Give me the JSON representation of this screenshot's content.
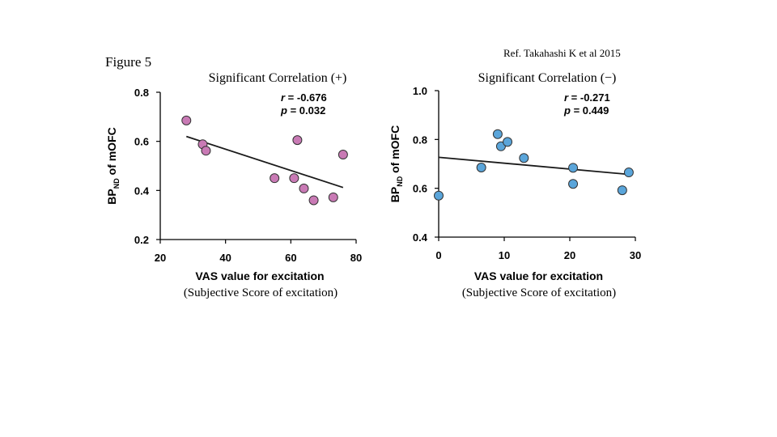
{
  "figure_label": "Figure 5",
  "reference": "Ref. Takahashi K et al 2015",
  "chart_data": [
    {
      "type": "scatter",
      "title": "Significant Correlation (+)",
      "subtitle": "(Subjective Score of excitation)",
      "xlabel": "VAS value for excitation",
      "ylabel_main": "BP",
      "ylabel_sub": "ND",
      "ylabel_rest": " of mOFC",
      "stat_r_label": "r",
      "stat_r_value": " = -0.676",
      "stat_p_label": "p",
      "stat_p_value": " = 0.032",
      "xlim": [
        20,
        80
      ],
      "ylim": [
        0.2,
        0.8
      ],
      "xticks": [
        20,
        40,
        60,
        80
      ],
      "xtick_labels": [
        "20",
        "40",
        "60",
        "80"
      ],
      "yticks": [
        0.2,
        0.4,
        0.6,
        0.8
      ],
      "ytick_labels": [
        "0.2",
        "0.4",
        "0.6",
        "0.8"
      ],
      "point_color": "#c97ab5",
      "points": [
        {
          "x": 28,
          "y": 0.685
        },
        {
          "x": 33,
          "y": 0.588
        },
        {
          "x": 34,
          "y": 0.562
        },
        {
          "x": 55,
          "y": 0.45
        },
        {
          "x": 61,
          "y": 0.45
        },
        {
          "x": 62,
          "y": 0.605
        },
        {
          "x": 64,
          "y": 0.408
        },
        {
          "x": 67,
          "y": 0.36
        },
        {
          "x": 73,
          "y": 0.372
        },
        {
          "x": 76,
          "y": 0.546
        }
      ],
      "fit": {
        "x1": 28,
        "y1": 0.62,
        "x2": 76,
        "y2": 0.412
      }
    },
    {
      "type": "scatter",
      "title": "Significant Correlation (−)",
      "subtitle": "(Subjective Score of excitation)",
      "xlabel": "VAS value for excitation",
      "ylabel_main": "BP",
      "ylabel_sub": "ND",
      "ylabel_rest": " of mOFC",
      "stat_r_label": "r",
      "stat_r_value": " = -0.271",
      "stat_p_label": "p",
      "stat_p_value": " = 0.449",
      "xlim": [
        0,
        30
      ],
      "ylim": [
        0.4,
        1.0
      ],
      "xticks": [
        0,
        10,
        20,
        30
      ],
      "xtick_labels": [
        "0",
        "10",
        "20",
        "30"
      ],
      "yticks": [
        0.4,
        0.6,
        0.8,
        1.0
      ],
      "ytick_labels": [
        "0.4",
        "0.6",
        "0.8",
        "1.0"
      ],
      "point_color": "#5aa5da",
      "points": [
        {
          "x": 0,
          "y": 0.57
        },
        {
          "x": 6.5,
          "y": 0.685
        },
        {
          "x": 9,
          "y": 0.822
        },
        {
          "x": 9.5,
          "y": 0.772
        },
        {
          "x": 10.5,
          "y": 0.79
        },
        {
          "x": 13,
          "y": 0.724
        },
        {
          "x": 20.5,
          "y": 0.684
        },
        {
          "x": 20.5,
          "y": 0.618
        },
        {
          "x": 28,
          "y": 0.592
        },
        {
          "x": 29,
          "y": 0.665
        }
      ],
      "fit": {
        "x1": 0,
        "y1": 0.727,
        "x2": 29,
        "y2": 0.657
      }
    }
  ]
}
